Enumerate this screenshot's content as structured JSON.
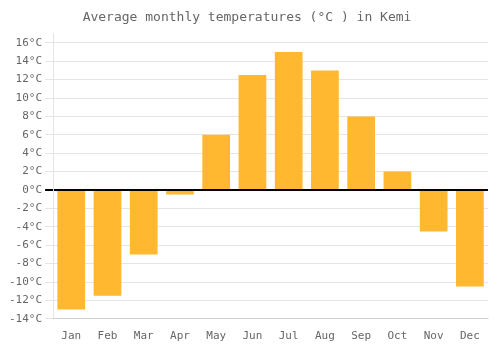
{
  "chart_data": {
    "type": "bar",
    "title": "Average monthly temperatures (°C ) in Kemi",
    "categories": [
      "Jan",
      "Feb",
      "Mar",
      "Apr",
      "May",
      "Jun",
      "Jul",
      "Aug",
      "Sep",
      "Oct",
      "Nov",
      "Dec"
    ],
    "values": [
      -13,
      -11.5,
      -7,
      -0.5,
      6,
      12.5,
      15,
      13,
      8,
      2,
      -4.5,
      -10.5
    ],
    "color": "#FFB830",
    "ylim": [
      -14,
      17
    ],
    "yticks": [
      {
        "value": -14,
        "label": "-14°C"
      },
      {
        "value": -12,
        "label": "-12°C"
      },
      {
        "value": -10,
        "label": "-10°C"
      },
      {
        "value": -8,
        "label": "-8°C"
      },
      {
        "value": -6,
        "label": "-6°C"
      },
      {
        "value": -4,
        "label": "-4°C"
      },
      {
        "value": -2,
        "label": "-2°C"
      },
      {
        "value": 0,
        "label": "0°C"
      },
      {
        "value": 2,
        "label": "2°C"
      },
      {
        "value": 4,
        "label": "4°C"
      },
      {
        "value": 6,
        "label": "6°C"
      },
      {
        "value": 8,
        "label": "8°C"
      },
      {
        "value": 10,
        "label": "10°C"
      },
      {
        "value": 12,
        "label": "12°C"
      },
      {
        "value": 14,
        "label": "14°C"
      },
      {
        "value": 16,
        "label": "16°C"
      }
    ],
    "grid": true
  }
}
